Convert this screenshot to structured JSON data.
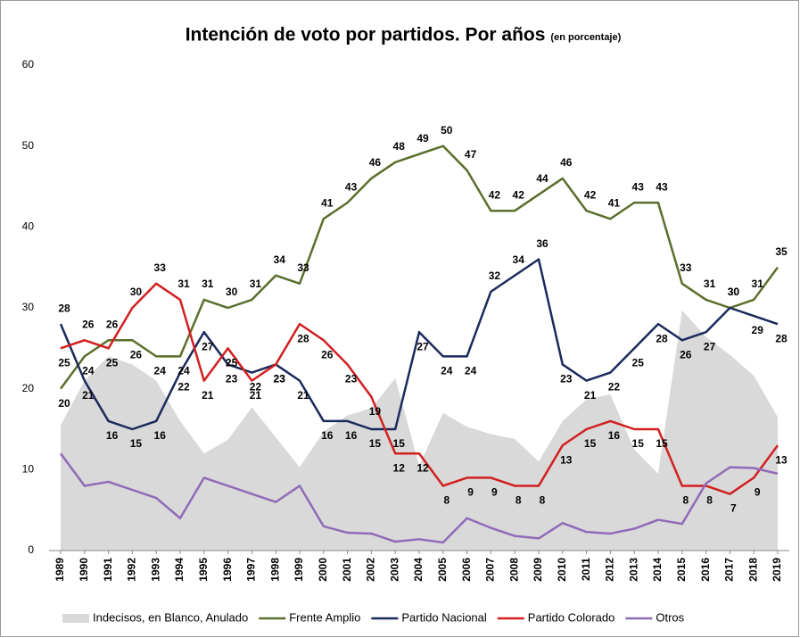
{
  "chart_data": {
    "type": "line",
    "title": "Intención de voto por partidos. Por años",
    "subtitle": "(en porcentaje)",
    "categories": [
      "1989",
      "1990",
      "1991",
      "1992",
      "1993",
      "1994",
      "1995",
      "1996",
      "1997",
      "1998",
      "1999",
      "2000",
      "2001",
      "2002",
      "2003",
      "2004",
      "2005",
      "2006",
      "2007",
      "2008",
      "2009",
      "2010",
      "2011",
      "2012",
      "2013",
      "2014",
      "2015",
      "2016",
      "2017",
      "2018",
      "2019"
    ],
    "ylim": [
      0,
      60
    ],
    "yticks": [
      0,
      10,
      20,
      30,
      40,
      50,
      60
    ],
    "grid": false,
    "legend": "bottom",
    "series": [
      {
        "name": "Indecisos, en Blanco, Anulado",
        "kind": "area",
        "color": "#d9d9d9",
        "values": [
          15.5,
          21,
          24,
          23,
          21,
          16,
          12,
          13.7,
          17.7,
          14,
          10.3,
          14.7,
          16.7,
          17.6,
          21.3,
          10.5,
          17,
          15.3,
          14.4,
          13.8,
          11,
          16,
          18.7,
          19.3,
          12.5,
          9.5,
          29.7,
          26.4,
          24.2,
          21.6,
          16.5
        ]
      },
      {
        "name": "Frente Amplio",
        "color": "#5b6e2c",
        "show_labels": true,
        "values": [
          20,
          24,
          26,
          26,
          24,
          24,
          31,
          30,
          31,
          34,
          33,
          41,
          43,
          46,
          48,
          49,
          50,
          47,
          42,
          42,
          44,
          46,
          42,
          41,
          43,
          43,
          33,
          31,
          30,
          31,
          35
        ]
      },
      {
        "name": "Partido Nacional",
        "color": "#1b2a5c",
        "show_labels": true,
        "values": [
          28,
          21,
          16,
          15,
          16,
          22,
          27,
          23,
          22,
          23,
          21,
          16,
          16,
          15,
          15,
          27,
          24,
          24,
          32,
          34,
          36,
          23,
          21,
          22,
          25,
          28,
          26,
          27,
          30,
          29,
          28
        ]
      },
      {
        "name": "Partido Colorado",
        "color": "#d21f1f",
        "show_labels": true,
        "values": [
          25,
          26,
          25,
          30,
          33,
          31,
          21,
          25,
          21,
          23,
          28,
          26,
          23,
          19,
          12,
          12,
          8,
          9,
          9,
          8,
          8,
          13,
          15,
          16,
          15,
          15,
          8,
          8,
          7,
          9,
          13
        ]
      },
      {
        "name": "Otros",
        "color": "#8f6bb8",
        "values": [
          12,
          8,
          8.5,
          7.5,
          6.5,
          4,
          9,
          8,
          7,
          6,
          8,
          3,
          2.2,
          2.1,
          1.1,
          1.4,
          1,
          4,
          2.8,
          1.8,
          1.5,
          3.4,
          2.3,
          2.1,
          2.7,
          3.8,
          3.3,
          8.3,
          10.3,
          10.2,
          9.5
        ]
      }
    ]
  }
}
